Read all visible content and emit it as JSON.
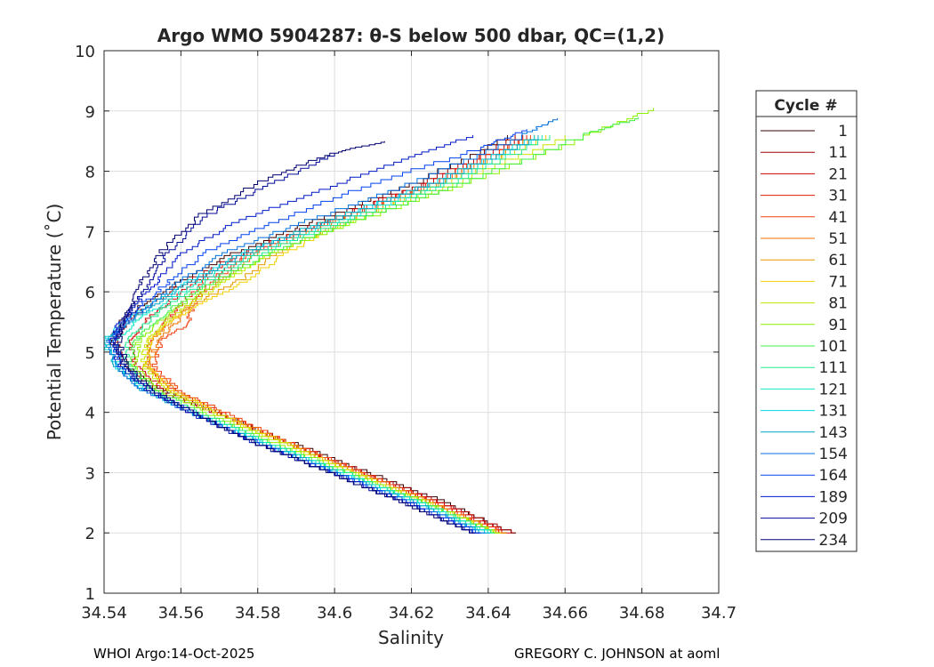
{
  "chart_data": {
    "type": "line",
    "title": "Argo WMO 5904287: θ-S below 500 dbar,  QC=(1,2)",
    "xlabel": "Salinity",
    "ylabel": "Potential Temperature (˚C)",
    "xlim": [
      34.54,
      34.7
    ],
    "ylim": [
      1,
      10
    ],
    "xticks": [
      "34.54",
      "34.56",
      "34.58",
      "34.6",
      "34.62",
      "34.64",
      "34.66",
      "34.68",
      "34.7"
    ],
    "yticks": [
      "1",
      "2",
      "3",
      "4",
      "5",
      "6",
      "7",
      "8",
      "9",
      "10"
    ],
    "grid": true,
    "legend": {
      "title": "Cycle #",
      "placement": "right-outside"
    },
    "series": [
      {
        "name": "1",
        "color": "#3a0000",
        "x": [
          34.647,
          34.63,
          34.61,
          34.59,
          34.57,
          34.555,
          34.546,
          34.542,
          34.544,
          34.55,
          34.56,
          34.575,
          34.595,
          34.62,
          34.645
        ],
        "y": [
          2.0,
          2.5,
          3.0,
          3.5,
          4.0,
          4.4,
          4.8,
          5.2,
          5.5,
          5.8,
          6.2,
          6.7,
          7.2,
          7.8,
          8.6
        ]
      },
      {
        "name": "11",
        "color": "#9e0000",
        "x": [
          34.647,
          34.629,
          34.609,
          34.589,
          34.569,
          34.554,
          34.545,
          34.543,
          34.546,
          34.552,
          34.562,
          34.577,
          34.597,
          34.622,
          34.647
        ],
        "y": [
          2.0,
          2.5,
          3.0,
          3.5,
          4.0,
          4.4,
          4.8,
          5.2,
          5.5,
          5.8,
          6.2,
          6.7,
          7.2,
          7.8,
          8.6
        ]
      },
      {
        "name": "21",
        "color": "#d00000",
        "x": [
          34.646,
          34.628,
          34.608,
          34.588,
          34.57,
          34.556,
          34.548,
          34.547,
          34.55,
          34.556,
          34.564,
          34.578,
          34.598,
          34.623,
          34.649
        ],
        "y": [
          2.0,
          2.5,
          3.0,
          3.5,
          4.0,
          4.4,
          4.8,
          5.2,
          5.5,
          5.8,
          6.2,
          6.7,
          7.2,
          7.8,
          8.6
        ]
      },
      {
        "name": "31",
        "color": "#e81a00",
        "x": [
          34.645,
          34.627,
          34.608,
          34.589,
          34.571,
          34.558,
          34.551,
          34.552,
          34.556,
          34.56,
          34.566,
          34.579,
          34.599,
          34.624,
          34.65
        ],
        "y": [
          2.0,
          2.5,
          3.0,
          3.5,
          4.0,
          4.4,
          4.8,
          5.2,
          5.5,
          5.8,
          6.2,
          6.7,
          7.2,
          7.8,
          8.6
        ]
      },
      {
        "name": "41",
        "color": "#f04010",
        "x": [
          34.645,
          34.627,
          34.608,
          34.589,
          34.572,
          34.559,
          34.553,
          34.555,
          34.562,
          34.563,
          34.568,
          34.58,
          34.6,
          34.625,
          34.651
        ],
        "y": [
          2.0,
          2.5,
          3.0,
          3.5,
          4.0,
          4.4,
          4.8,
          5.2,
          5.5,
          5.8,
          6.2,
          6.7,
          7.2,
          7.8,
          8.6
        ]
      },
      {
        "name": "51",
        "color": "#f07000",
        "x": [
          34.644,
          34.626,
          34.607,
          34.588,
          34.571,
          34.558,
          34.552,
          34.554,
          34.559,
          34.562,
          34.57,
          34.581,
          34.601,
          34.626,
          34.652
        ],
        "y": [
          2.0,
          2.5,
          3.0,
          3.5,
          4.0,
          4.4,
          4.8,
          5.2,
          5.5,
          5.8,
          6.2,
          6.7,
          7.2,
          7.8,
          8.6
        ]
      },
      {
        "name": "61",
        "color": "#e89a00",
        "x": [
          34.644,
          34.626,
          34.607,
          34.588,
          34.57,
          34.557,
          34.551,
          34.552,
          34.557,
          34.563,
          34.575,
          34.586,
          34.603,
          34.627,
          34.653
        ],
        "y": [
          2.0,
          2.5,
          3.0,
          3.5,
          4.0,
          4.4,
          4.8,
          5.2,
          5.5,
          5.8,
          6.2,
          6.7,
          7.2,
          7.8,
          8.6
        ]
      },
      {
        "name": "71",
        "color": "#f2d000",
        "x": [
          34.643,
          34.625,
          34.606,
          34.587,
          34.57,
          34.557,
          34.551,
          34.552,
          34.557,
          34.564,
          34.577,
          34.588,
          34.604,
          34.628,
          34.655
        ],
        "y": [
          2.0,
          2.5,
          3.0,
          3.5,
          4.0,
          4.4,
          4.8,
          5.2,
          5.5,
          5.8,
          6.2,
          6.7,
          7.2,
          7.8,
          8.6
        ]
      },
      {
        "name": "81",
        "color": "#c8e600",
        "x": [
          34.643,
          34.625,
          34.606,
          34.587,
          34.569,
          34.556,
          34.55,
          34.551,
          34.556,
          34.562,
          34.572,
          34.585,
          34.605,
          34.63,
          34.66
        ],
        "y": [
          2.0,
          2.5,
          3.0,
          3.5,
          4.0,
          4.4,
          4.8,
          5.2,
          5.5,
          5.8,
          6.2,
          6.7,
          7.2,
          7.8,
          8.6
        ]
      },
      {
        "name": "91",
        "color": "#8cf000",
        "x": [
          34.643,
          34.625,
          34.605,
          34.585,
          34.567,
          34.554,
          34.548,
          34.549,
          34.554,
          34.56,
          34.57,
          34.585,
          34.606,
          34.633,
          34.665,
          34.683
        ],
        "y": [
          2.0,
          2.5,
          3.0,
          3.5,
          4.0,
          4.4,
          4.8,
          5.2,
          5.5,
          5.8,
          6.2,
          6.7,
          7.2,
          7.8,
          8.6,
          9.05
        ]
      },
      {
        "name": "101",
        "color": "#40f040",
        "x": [
          34.642,
          34.624,
          34.604,
          34.584,
          34.566,
          34.553,
          34.547,
          34.548,
          34.553,
          34.559,
          34.569,
          34.584,
          34.605,
          34.632,
          34.664,
          34.679
        ],
        "y": [
          2.0,
          2.5,
          3.0,
          3.5,
          4.0,
          4.4,
          4.8,
          5.2,
          5.5,
          5.8,
          6.2,
          6.7,
          7.2,
          7.8,
          8.6,
          8.9
        ]
      },
      {
        "name": "111",
        "color": "#20e890",
        "x": [
          34.642,
          34.624,
          34.604,
          34.584,
          34.565,
          34.552,
          34.546,
          34.546,
          34.551,
          34.557,
          34.567,
          34.582,
          34.603,
          34.629,
          34.656
        ],
        "y": [
          2.0,
          2.5,
          3.0,
          3.5,
          4.0,
          4.4,
          4.8,
          5.2,
          5.5,
          5.8,
          6.2,
          6.7,
          7.2,
          7.8,
          8.6
        ]
      },
      {
        "name": "121",
        "color": "#10e8c8",
        "x": [
          34.641,
          34.623,
          34.603,
          34.583,
          34.564,
          34.551,
          34.544,
          34.543,
          34.548,
          34.555,
          34.565,
          34.58,
          34.601,
          34.627,
          34.654
        ],
        "y": [
          2.0,
          2.5,
          3.0,
          3.5,
          4.0,
          4.4,
          4.8,
          5.2,
          5.5,
          5.8,
          6.2,
          6.7,
          7.2,
          7.8,
          8.6
        ]
      },
      {
        "name": "131",
        "color": "#00d8e8",
        "x": [
          34.64,
          34.622,
          34.602,
          34.582,
          34.563,
          34.55,
          34.543,
          34.54,
          34.545,
          34.552,
          34.562,
          34.577,
          34.598,
          34.624,
          34.652
        ],
        "y": [
          2.0,
          2.5,
          3.0,
          3.5,
          4.0,
          4.4,
          4.8,
          5.2,
          5.5,
          5.8,
          6.2,
          6.7,
          7.2,
          7.8,
          8.6
        ]
      },
      {
        "name": "143",
        "color": "#00a8c8",
        "x": [
          34.64,
          34.622,
          34.602,
          34.582,
          34.563,
          34.55,
          34.543,
          34.541,
          34.546,
          34.553,
          34.563,
          34.578,
          34.599,
          34.625,
          34.653
        ],
        "y": [
          2.0,
          2.5,
          3.0,
          3.5,
          4.0,
          4.4,
          4.8,
          5.2,
          5.5,
          5.8,
          6.2,
          6.7,
          7.2,
          7.8,
          8.6
        ]
      },
      {
        "name": "154",
        "color": "#0070e0",
        "x": [
          34.639,
          34.621,
          34.601,
          34.581,
          34.563,
          34.55,
          34.543,
          34.541,
          34.546,
          34.552,
          34.56,
          34.572,
          34.593,
          34.619,
          34.648,
          34.658
        ],
        "y": [
          2.0,
          2.5,
          3.0,
          3.5,
          4.0,
          4.4,
          4.8,
          5.2,
          5.5,
          5.8,
          6.2,
          6.7,
          7.2,
          7.8,
          8.6,
          8.88
        ]
      },
      {
        "name": "164",
        "color": "#0040f0",
        "x": [
          34.638,
          34.62,
          34.601,
          34.581,
          34.564,
          34.552,
          34.545,
          34.542,
          34.545,
          34.55,
          34.557,
          34.567,
          34.585,
          34.609,
          34.638,
          34.65
        ],
        "y": [
          2.0,
          2.5,
          3.0,
          3.5,
          4.0,
          4.4,
          4.8,
          5.2,
          5.5,
          5.8,
          6.2,
          6.7,
          7.2,
          7.8,
          8.4,
          8.7
        ]
      },
      {
        "name": "189",
        "color": "#0018c8",
        "x": [
          34.638,
          34.62,
          34.6,
          34.58,
          34.563,
          34.551,
          34.544,
          34.542,
          34.544,
          34.548,
          34.554,
          34.561,
          34.575,
          34.596,
          34.618,
          34.636
        ],
        "y": [
          2.0,
          2.5,
          3.0,
          3.5,
          4.0,
          4.4,
          4.8,
          5.2,
          5.5,
          5.8,
          6.2,
          6.7,
          7.2,
          7.7,
          8.2,
          8.6
        ]
      },
      {
        "name": "209",
        "color": "#000898",
        "x": [
          34.637,
          34.619,
          34.6,
          34.58,
          34.563,
          34.551,
          34.545,
          34.543,
          34.545,
          34.548,
          34.552,
          34.557,
          34.567,
          34.583,
          34.6
        ],
        "y": [
          2.0,
          2.5,
          3.0,
          3.5,
          4.0,
          4.4,
          4.8,
          5.2,
          5.5,
          5.8,
          6.2,
          6.7,
          7.3,
          7.8,
          8.3
        ]
      },
      {
        "name": "234",
        "color": "#000070",
        "x": [
          34.637,
          34.619,
          34.6,
          34.58,
          34.564,
          34.552,
          34.546,
          34.544,
          34.545,
          34.547,
          34.55,
          34.555,
          34.565,
          34.582,
          34.599,
          34.613
        ],
        "y": [
          2.0,
          2.5,
          3.0,
          3.5,
          4.0,
          4.4,
          4.8,
          5.2,
          5.5,
          5.8,
          6.2,
          6.7,
          7.3,
          7.9,
          8.3,
          8.5
        ]
      }
    ]
  },
  "footer": {
    "left": "WHOI Argo:14-Oct-2025",
    "right": "GREGORY C. JOHNSON at aoml"
  }
}
